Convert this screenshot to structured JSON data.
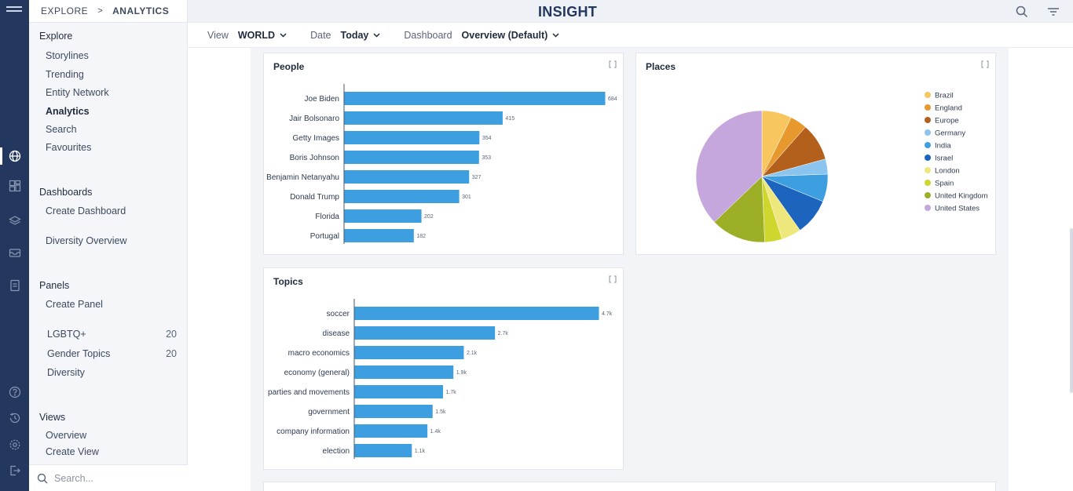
{
  "breadcrumb": {
    "parent": "EXPLORE",
    "separator": ">",
    "current": "ANALYTICS"
  },
  "app": {
    "title": "INSIGHT"
  },
  "filters": {
    "view_label": "View",
    "view_value": "WORLD",
    "date_label": "Date",
    "date_value": "Today",
    "dashboard_label": "Dashboard",
    "dashboard_value": "Overview (Default)"
  },
  "sidebar": {
    "explore_title": "Explore",
    "explore_items": [
      "Storylines",
      "Trending",
      "Entity Network",
      "Analytics",
      "Search",
      "Favourites"
    ],
    "dashboards_title": "Dashboards",
    "dashboards_items": [
      "Create Dashboard",
      "Diversity Overview"
    ],
    "panels_title": "Panels",
    "panels_create": "Create Panel",
    "panels_items": [
      {
        "label": "LGBTQ+",
        "count": "20"
      },
      {
        "label": "Gender Topics",
        "count": "20"
      },
      {
        "label": "Diversity",
        "count": ""
      }
    ],
    "views_title": "Views",
    "views_items": [
      "Overview",
      "Create View"
    ],
    "search_placeholder": "Search..."
  },
  "colors": {
    "accent": "#23375f",
    "bar": "#3d9fe0"
  },
  "chart_data": [
    {
      "type": "bar",
      "title": "People",
      "categories": [
        "Joe Biden",
        "Jair Bolsonaro",
        "Getty Images",
        "Boris Johnson",
        "Benjamin Netanyahu",
        "Donald Trump",
        "Florida",
        "Portugal"
      ],
      "values": [
        684,
        415,
        354,
        353,
        327,
        301,
        202,
        182
      ],
      "labels": [
        "684",
        "415",
        "354",
        "353",
        "327",
        "301",
        "202",
        "182"
      ],
      "orientation": "horizontal"
    },
    {
      "type": "pie",
      "title": "Places",
      "labels": [
        "Brazil",
        "England",
        "Europe",
        "Germany",
        "India",
        "Israel",
        "London",
        "Spain",
        "United Kingdom",
        "United States"
      ],
      "values": [
        6.5,
        3.7,
        8.2,
        3.3,
        6.0,
        8.0,
        4.3,
        3.8,
        12.0,
        33.0
      ],
      "colors": [
        "#f7c65e",
        "#e8992e",
        "#b3601c",
        "#8bc4ee",
        "#3d9fe0",
        "#1d64bf",
        "#eee77b",
        "#cfd62e",
        "#9caf26",
        "#c5a6dd"
      ],
      "legend": "right"
    },
    {
      "type": "bar",
      "title": "Topics",
      "categories": [
        "soccer",
        "disease",
        "macro economics",
        "economy (general)",
        "parties and movements",
        "government",
        "company information",
        "election"
      ],
      "values": [
        4700,
        2700,
        2100,
        1900,
        1700,
        1500,
        1400,
        1100
      ],
      "labels": [
        "4.7k",
        "2.7k",
        "2.1k",
        "1.9k",
        "1.7k",
        "1.5k",
        "1.4k",
        "1.1k"
      ],
      "orientation": "horizontal"
    }
  ]
}
